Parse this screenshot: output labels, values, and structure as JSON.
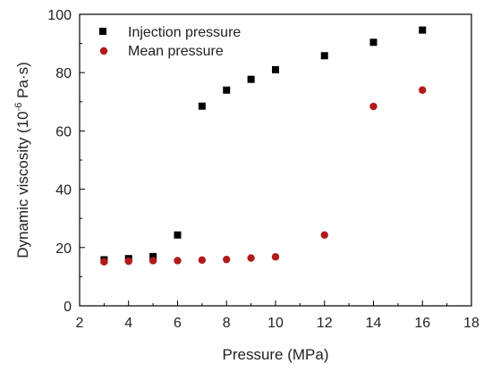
{
  "chart_data": {
    "type": "scatter",
    "xlabel": "Pressure (MPa)",
    "ylabel_main": "Dynamic viscosity (10",
    "ylabel_sup": "-6",
    "ylabel_tail": " Pa·s)",
    "xlim": [
      2,
      18
    ],
    "ylim": [
      0,
      100
    ],
    "xticks": [
      2,
      4,
      6,
      8,
      10,
      12,
      14,
      16,
      18
    ],
    "yticks": [
      0,
      20,
      40,
      60,
      80,
      100
    ],
    "grid": false,
    "legend_position": "top-left",
    "series": [
      {
        "name": "Injection pressure",
        "marker": "square",
        "color": "#000000",
        "x": [
          3,
          4,
          5,
          6,
          7,
          8,
          9,
          10,
          12,
          14,
          16
        ],
        "y": [
          15.8,
          16.2,
          16.9,
          24.3,
          68.5,
          74.0,
          77.7,
          81.0,
          85.8,
          90.4,
          94.6
        ]
      },
      {
        "name": "Mean pressure",
        "marker": "circle",
        "color": "#b01a1a",
        "x": [
          3,
          4,
          5,
          6,
          7,
          8,
          9,
          10,
          12,
          14,
          16
        ],
        "y": [
          15.1,
          15.3,
          15.5,
          15.5,
          15.7,
          15.9,
          16.4,
          16.8,
          24.3,
          68.4,
          74.0
        ]
      }
    ]
  }
}
